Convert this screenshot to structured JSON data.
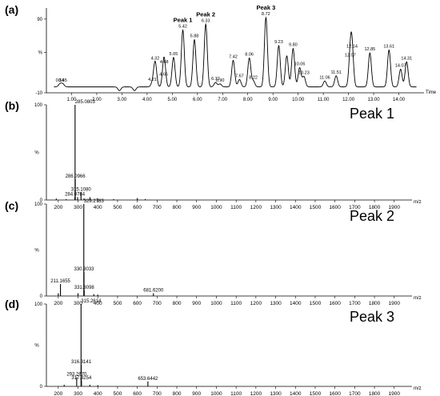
{
  "figure": {
    "panels": [
      {
        "letter": "(a)",
        "title": ""
      },
      {
        "letter": "(b)",
        "title": "Peak 1"
      },
      {
        "letter": "(c)",
        "title": "Peak 2"
      },
      {
        "letter": "(d)",
        "title": "Peak 3"
      }
    ]
  },
  "chart_data": [
    {
      "type": "line",
      "panel": "(a)",
      "xlabel": "Time",
      "ylabel": "%",
      "xlim": [
        0,
        15
      ],
      "ylim": [
        -10,
        105
      ],
      "xticks": [
        1,
        2,
        3,
        4,
        5,
        6,
        7,
        8,
        9,
        10,
        11,
        12,
        13,
        14
      ],
      "xtick_labels": [
        "1.00",
        "2.00",
        "3.00",
        "4.00",
        "5.00",
        "6.00",
        "7.00",
        "8.00",
        "9.00",
        "10.00",
        "11.00",
        "12.00",
        "13.00",
        "14.00"
      ],
      "yticks": [
        -10,
        45,
        90
      ],
      "ytick_labels": [
        "-10",
        "%",
        "90"
      ],
      "baseline": -2,
      "peaks": [
        {
          "rt": 0.54,
          "height": 2,
          "label": "0.54"
        },
        {
          "rt": 0.65,
          "height": 2,
          "label": "0.65"
        },
        {
          "rt": 2.9,
          "height": -7
        },
        {
          "rt": 3.5,
          "height": -7
        },
        {
          "rt": 4.21,
          "height": 3,
          "label": "4.21"
        },
        {
          "rt": 4.32,
          "height": 32,
          "label": "4.32"
        },
        {
          "rt": 4.66,
          "height": 10,
          "label": "4.66"
        },
        {
          "rt": 4.68,
          "height": 27,
          "label": "4.68"
        },
        {
          "rt": 5.05,
          "height": 38,
          "label": "5.05"
        },
        {
          "rt": 5.42,
          "height": 75,
          "label": "5.42",
          "annotation": "Peak 1"
        },
        {
          "rt": 5.88,
          "height": 62,
          "label": "5.88"
        },
        {
          "rt": 6.33,
          "height": 83,
          "label": "6.33",
          "annotation": "Peak 2"
        },
        {
          "rt": 6.72,
          "height": 4,
          "label": "6.72"
        },
        {
          "rt": 6.9,
          "height": 2,
          "label": "6.90"
        },
        {
          "rt": 7.42,
          "height": 34,
          "label": "7.42"
        },
        {
          "rt": 7.67,
          "height": 8,
          "label": "7.67"
        },
        {
          "rt": 8.06,
          "height": 37,
          "label": "8.06"
        },
        {
          "rt": 8.22,
          "height": 6,
          "label": "8.22"
        },
        {
          "rt": 8.72,
          "height": 92,
          "label": "8.72",
          "annotation": "Peak 3"
        },
        {
          "rt": 9.23,
          "height": 54,
          "label": "9.23"
        },
        {
          "rt": 9.55,
          "height": 40
        },
        {
          "rt": 9.8,
          "height": 50,
          "label": "9.80"
        },
        {
          "rt": 10.06,
          "height": 24,
          "label": "10.06"
        },
        {
          "rt": 10.23,
          "height": 12,
          "label": "10.23"
        },
        {
          "rt": 11.06,
          "height": 6,
          "label": "11.06"
        },
        {
          "rt": 11.51,
          "height": 13,
          "label": "11.51"
        },
        {
          "rt": 12.07,
          "height": 36,
          "label": "12.07"
        },
        {
          "rt": 12.14,
          "height": 48,
          "label": "12.14"
        },
        {
          "rt": 12.85,
          "height": 44,
          "label": "12.85"
        },
        {
          "rt": 13.61,
          "height": 48,
          "label": "13.61"
        },
        {
          "rt": 14.07,
          "height": 22,
          "label": "14.07"
        },
        {
          "rt": 14.31,
          "height": 32,
          "label": "14.31"
        }
      ]
    },
    {
      "type": "bar",
      "panel": "(b)",
      "title": "Peak 1",
      "xlabel": "m/z",
      "ylabel": "%",
      "xlim": [
        140,
        1990
      ],
      "ylim": [
        0,
        100
      ],
      "xticks": [
        200,
        300,
        400,
        500,
        600,
        700,
        800,
        900,
        1000,
        1100,
        1200,
        1300,
        1400,
        1500,
        1600,
        1700,
        1800,
        1900
      ],
      "yticks": [
        0,
        100
      ],
      "peaks": [
        {
          "mz": 190,
          "intensity": 1.5
        },
        {
          "mz": 240,
          "intensity": 1
        },
        {
          "mz": 284.0784,
          "intensity": 3,
          "label": "284.0784"
        },
        {
          "mz": 285.0803,
          "intensity": 100,
          "label": "285.0803"
        },
        {
          "mz": 286.0966,
          "intensity": 22,
          "label": "286.0966"
        },
        {
          "mz": 298,
          "intensity": 3
        },
        {
          "mz": 315.108,
          "intensity": 8,
          "label": "315.1080"
        },
        {
          "mz": 330,
          "intensity": 1.5
        },
        {
          "mz": 360,
          "intensity": 3
        },
        {
          "mz": 400,
          "intensity": 1.5
        },
        {
          "mz": 480,
          "intensity": 1
        },
        {
          "mz": 600,
          "intensity": 2
        },
        {
          "mz": 640,
          "intensity": 1
        }
      ]
    },
    {
      "type": "bar",
      "panel": "(c)",
      "title": "Peak 2",
      "xlabel": "m/z",
      "ylabel": "%",
      "xlim": [
        140,
        1990
      ],
      "ylim": [
        0,
        100
      ],
      "xticks": [
        200,
        300,
        400,
        500,
        600,
        700,
        800,
        900,
        1000,
        1100,
        1200,
        1300,
        1400,
        1500,
        1600,
        1700,
        1800,
        1900
      ],
      "yticks": [
        0,
        100
      ],
      "peaks": [
        {
          "mz": 200,
          "intensity": 3
        },
        {
          "mz": 211.1655,
          "intensity": 13,
          "label": "211.1655"
        },
        {
          "mz": 300,
          "intensity": 3
        },
        {
          "mz": 329.2783,
          "intensity": 100,
          "label": "329.2783"
        },
        {
          "mz": 330.3033,
          "intensity": 26,
          "label": "330.3033"
        },
        {
          "mz": 331.3098,
          "intensity": 6,
          "label": "331.3098"
        },
        {
          "mz": 380,
          "intensity": 2
        },
        {
          "mz": 400,
          "intensity": 1.5
        },
        {
          "mz": 681.62,
          "intensity": 3,
          "label": "681.6200"
        }
      ]
    },
    {
      "type": "bar",
      "panel": "(d)",
      "title": "Peak 3",
      "xlabel": "m/z",
      "ylabel": "%",
      "xlim": [
        140,
        1990
      ],
      "ylim": [
        0,
        100
      ],
      "xticks": [
        200,
        300,
        400,
        500,
        600,
        700,
        800,
        900,
        1000,
        1100,
        1200,
        1300,
        1400,
        1500,
        1600,
        1700,
        1800,
        1900
      ],
      "yticks": [
        0,
        100
      ],
      "peaks": [
        {
          "mz": 230,
          "intensity": 2
        },
        {
          "mz": 293.267,
          "intensity": 11,
          "label": "293.2670"
        },
        {
          "mz": 315.2814,
          "intensity": 100,
          "label": "315.2814"
        },
        {
          "mz": 316.3141,
          "intensity": 26,
          "label": "316.3141"
        },
        {
          "mz": 317.3254,
          "intensity": 7,
          "label": "317.3254"
        },
        {
          "mz": 360,
          "intensity": 2
        },
        {
          "mz": 400,
          "intensity": 1.5
        },
        {
          "mz": 653.6442,
          "intensity": 6,
          "label": "653.6442"
        }
      ]
    }
  ]
}
